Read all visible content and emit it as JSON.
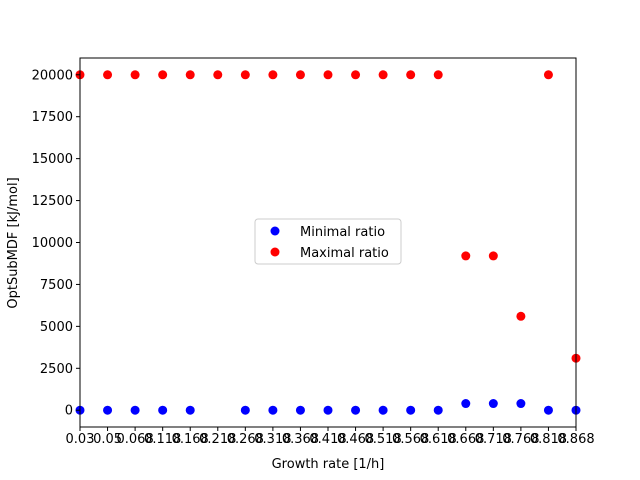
{
  "chart_data": {
    "type": "scatter",
    "xlabel": "Growth rate [1/h]",
    "ylabel": "OptSubMDF [kJ/mol]",
    "x_tick_labels": [
      "0.03",
      "0.05",
      "0.068",
      "0.118",
      "0.168",
      "0.218",
      "0.268",
      "0.318",
      "0.368",
      "0.418",
      "0.468",
      "0.518",
      "0.568",
      "0.618",
      "0.668",
      "0.718",
      "0.768",
      "0.818",
      "0.868"
    ],
    "ylim": [
      -1000,
      21000
    ],
    "y_ticks": [
      0,
      2500,
      5000,
      7500,
      10000,
      12500,
      15000,
      17500,
      20000
    ],
    "y_tick_labels": [
      "0",
      "2500",
      "5000",
      "7500",
      "10000",
      "12500",
      "15000",
      "17500",
      "20000"
    ],
    "grid": false,
    "legend_position": "center",
    "series": [
      {
        "name": "Minimal ratio",
        "color": "#0000ff",
        "x": [
          "0.03",
          "0.05",
          "0.068",
          "0.118",
          "0.168",
          "0.268",
          "0.318",
          "0.368",
          "0.418",
          "0.468",
          "0.518",
          "0.568",
          "0.618",
          "0.668",
          "0.718",
          "0.768",
          "0.818",
          "0.868"
        ],
        "y": [
          0,
          0,
          0,
          0,
          0,
          0,
          0,
          0,
          0,
          0,
          0,
          0,
          0,
          400,
          400,
          400,
          0,
          0
        ]
      },
      {
        "name": "Maximal ratio",
        "color": "#ff0000",
        "x": [
          "0.03",
          "0.05",
          "0.068",
          "0.118",
          "0.168",
          "0.218",
          "0.268",
          "0.318",
          "0.368",
          "0.418",
          "0.468",
          "0.518",
          "0.568",
          "0.618",
          "0.668",
          "0.718",
          "0.768",
          "0.818",
          "0.868"
        ],
        "y": [
          20000,
          20000,
          20000,
          20000,
          20000,
          20000,
          20000,
          20000,
          20000,
          20000,
          20000,
          20000,
          20000,
          20000,
          9200,
          9200,
          5600,
          20000,
          3100
        ]
      }
    ]
  }
}
